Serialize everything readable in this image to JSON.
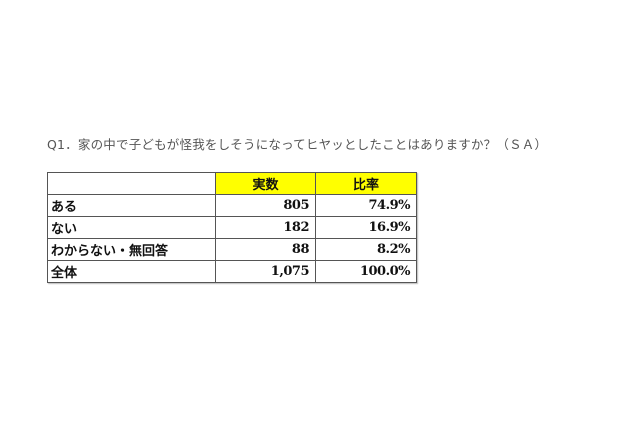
{
  "question": "Q1．家の中で子どもが怪我をしそうになってヒヤッとしたことはありますか？（ＳＡ）",
  "table": {
    "headers": [
      "",
      "実数",
      "比率"
    ],
    "header_color": "#ffff00",
    "rows": [
      {
        "label": "ある",
        "count": "805",
        "ratio": "74.9%"
      },
      {
        "label": "ない",
        "count": "182",
        "ratio": "16.9%"
      },
      {
        "label": "わからない・無回答",
        "count": "88",
        "ratio": "8.2%"
      },
      {
        "label": "全体",
        "count": "1,075",
        "ratio": "100.0%"
      }
    ]
  }
}
